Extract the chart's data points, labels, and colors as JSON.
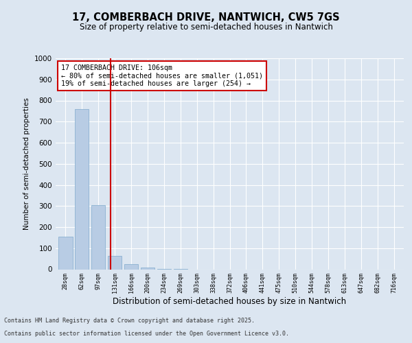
{
  "title": "17, COMBERBACH DRIVE, NANTWICH, CW5 7GS",
  "subtitle": "Size of property relative to semi-detached houses in Nantwich",
  "xlabel": "Distribution of semi-detached houses by size in Nantwich",
  "ylabel": "Number of semi-detached properties",
  "bar_color": "#b8cce4",
  "bar_edge_color": "#7faacc",
  "background_color": "#dce6f1",
  "plot_bg_color": "#dce6f1",
  "categories": [
    "28sqm",
    "62sqm",
    "97sqm",
    "131sqm",
    "166sqm",
    "200sqm",
    "234sqm",
    "269sqm",
    "303sqm",
    "338sqm",
    "372sqm",
    "406sqm",
    "441sqm",
    "475sqm",
    "510sqm",
    "544sqm",
    "578sqm",
    "613sqm",
    "647sqm",
    "682sqm",
    "716sqm"
  ],
  "values": [
    155,
    760,
    305,
    62,
    25,
    8,
    2,
    1,
    0,
    0,
    0,
    0,
    0,
    0,
    0,
    0,
    0,
    0,
    0,
    0,
    0
  ],
  "vline_x": 2.75,
  "vline_color": "#cc0000",
  "annotation_text": "17 COMBERBACH DRIVE: 106sqm\n← 80% of semi-detached houses are smaller (1,051)\n19% of semi-detached houses are larger (254) →",
  "annotation_box_color": "#ffffff",
  "annotation_box_edge": "#cc0000",
  "ylim": [
    0,
    1000
  ],
  "yticks": [
    0,
    100,
    200,
    300,
    400,
    500,
    600,
    700,
    800,
    900,
    1000
  ],
  "footer_line1": "Contains HM Land Registry data © Crown copyright and database right 2025.",
  "footer_line2": "Contains public sector information licensed under the Open Government Licence v3.0."
}
